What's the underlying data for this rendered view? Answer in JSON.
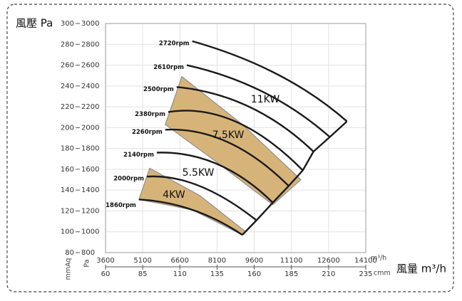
{
  "chart_data": {
    "type": "line",
    "y_label": "風壓 Pa",
    "x_label": "風量 m³/h",
    "x_unit": "m³/h",
    "x2_unit": "cmm",
    "y_unit": "Pa",
    "y2_unit": "mmAq",
    "xlim": [
      3600,
      14100
    ],
    "xticks": [
      3600,
      5100,
      6600,
      8100,
      9600,
      11100,
      12600,
      14100
    ],
    "x2lim": [
      60,
      235
    ],
    "x2ticks": [
      60,
      85,
      110,
      135,
      160,
      185,
      210,
      235
    ],
    "ylim": [
      800,
      3000
    ],
    "yticks": [
      800,
      1000,
      1200,
      1400,
      1600,
      1800,
      2000,
      2200,
      2400,
      2600,
      2800,
      3000
    ],
    "y2lim": [
      80,
      300
    ],
    "y2ticks": [
      80,
      100,
      120,
      140,
      160,
      180,
      200,
      220,
      240,
      260,
      280,
      300
    ],
    "grid": true,
    "regions": [
      {
        "name": "7.5KW",
        "color": "#d6b479",
        "x": [
          6680,
          9120,
          11480,
          10350,
          7970,
          6010
        ],
        "y": [
          2490,
          2030,
          1500,
          1260,
          1690,
          2030
        ]
      },
      {
        "name": "4KW",
        "color": "#d6b479",
        "x": [
          5380,
          7390,
          9260,
          9120,
          7110,
          4950
        ],
        "y": [
          1610,
          1350,
          1000,
          970,
          1210,
          1310
        ]
      }
    ],
    "annotations": [
      "11KW",
      "5.5KW"
    ],
    "series": [
      {
        "name": "2720rpm",
        "color": "#1a1a1a",
        "x": [
          7100,
          10550,
          13340
        ],
        "values": [
          2830,
          2510,
          2060
        ]
      },
      {
        "name": "2610rpm",
        "color": "#1a1a1a",
        "x": [
          6880,
          9980,
          12650
        ],
        "values": [
          2600,
          2340,
          1910
        ]
      },
      {
        "name": "2500rpm",
        "color": "#1a1a1a",
        "x": [
          6470,
          9400,
          11990
        ],
        "values": [
          2390,
          2200,
          1770
        ]
      },
      {
        "name": "2380rpm",
        "color": "#1a1a1a",
        "x": [
          6130,
          8830,
          11560
        ],
        "values": [
          2150,
          2060,
          1590
        ]
      },
      {
        "name": "2260rpm",
        "color": "#1a1a1a",
        "x": [
          6010,
          8540,
          10990
        ],
        "values": [
          1980,
          1860,
          1440
        ]
      },
      {
        "name": "2140rpm",
        "color": "#1a1a1a",
        "x": [
          5670,
          8110,
          10350
        ],
        "values": [
          1760,
          1650,
          1280
        ]
      },
      {
        "name": "2000rpm",
        "color": "#1a1a1a",
        "x": [
          5270,
          7390,
          9690
        ],
        "values": [
          1530,
          1440,
          1110
        ]
      },
      {
        "name": "1860rpm",
        "color": "#1a1a1a",
        "x": [
          4950,
          7110,
          9120
        ],
        "values": [
          1310,
          1210,
          970
        ]
      }
    ]
  }
}
